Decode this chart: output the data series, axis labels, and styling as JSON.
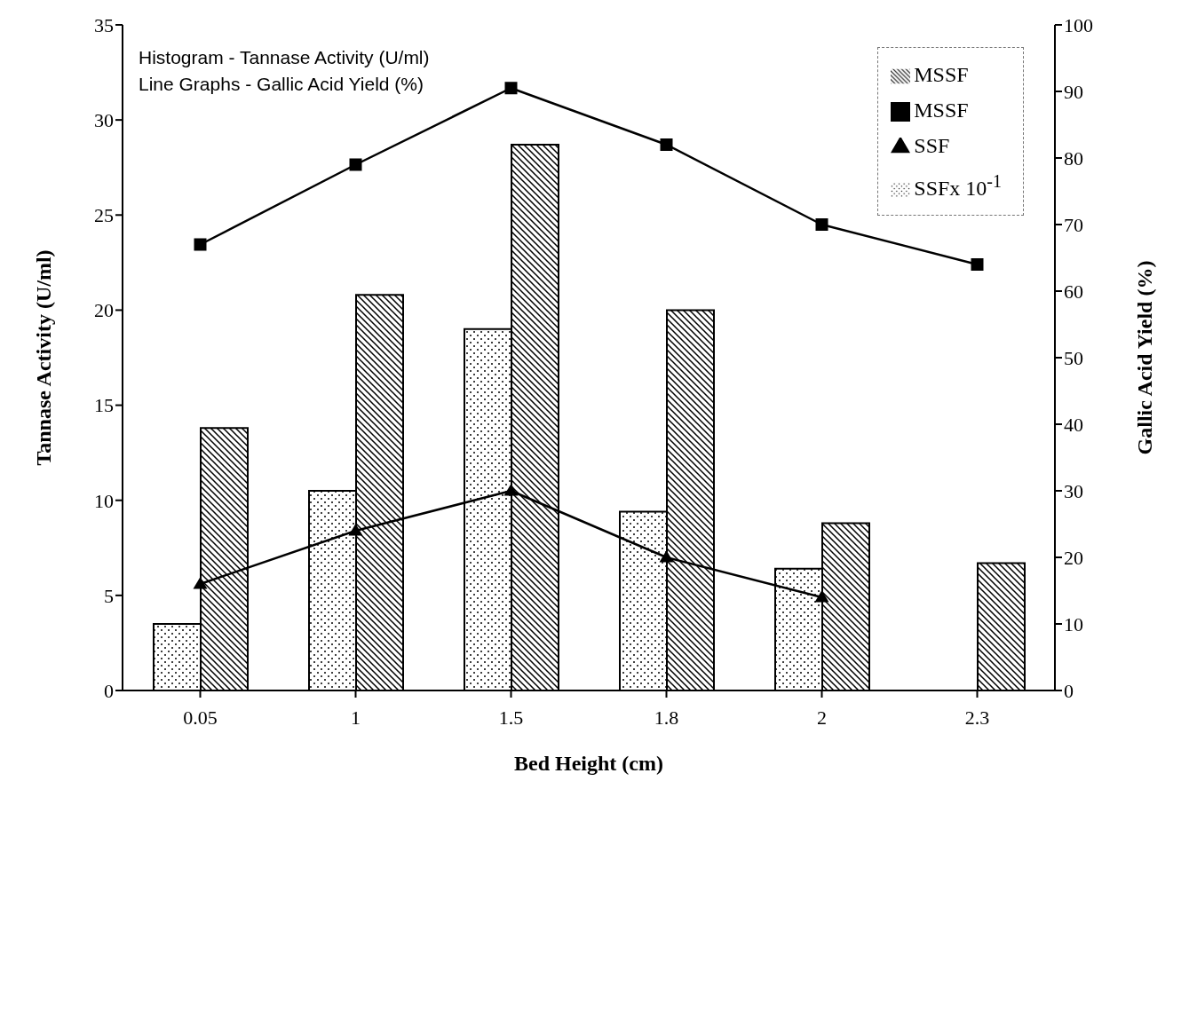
{
  "chart_data": {
    "type": "bar",
    "xlabel": "Bed Height (cm)",
    "ylabel": "Tannase Activity (U/ml)",
    "y2label": "Gallic Acid Yield (%)",
    "annotations": [
      "Histogram - Tannase Activity (U/ml)",
      "Line Graphs - Gallic Acid Yield (%)"
    ],
    "categories": [
      "0.05",
      "1",
      "1.5",
      "1.8",
      "2",
      "2.3"
    ],
    "series": [
      {
        "name": "SSFx 10$^{-1}$",
        "color": "#000000",
        "values": [
          3.5,
          10.5,
          19.0,
          9.4,
          6.4,
          null
        ]
      },
      {
        "name": "MSSF",
        "color": "#000000",
        "values": [
          13.8,
          20.8,
          28.7,
          20.0,
          8.8,
          6.7
        ]
      },
      {
        "name": "SSF",
        "type": "line",
        "axis": "y2",
        "marker": "triangle",
        "color": "#000000",
        "values": [
          16,
          24,
          30,
          20,
          14,
          null
        ]
      },
      {
        "name": "MSSF",
        "type": "line",
        "axis": "y2",
        "marker": "square",
        "color": "#000000",
        "values": [
          67,
          79,
          90.5,
          82,
          70,
          64
        ]
      }
    ],
    "ylim": [
      0,
      35
    ],
    "yticks": [
      0,
      5,
      10,
      15,
      20,
      25,
      30,
      35
    ],
    "y2lim": [
      0,
      100
    ],
    "y2ticks": [
      0,
      10,
      20,
      30,
      40,
      50,
      60,
      70,
      80,
      90,
      100
    ],
    "grid": false,
    "legend": "top right"
  }
}
